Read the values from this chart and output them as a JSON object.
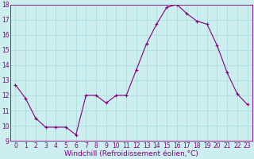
{
  "x": [
    0,
    1,
    2,
    3,
    4,
    5,
    6,
    7,
    8,
    9,
    10,
    11,
    12,
    13,
    14,
    15,
    16,
    17,
    18,
    19,
    20,
    21,
    22,
    23
  ],
  "y": [
    12.7,
    11.8,
    10.5,
    9.9,
    9.9,
    9.9,
    9.4,
    12.0,
    12.0,
    11.5,
    12.0,
    12.0,
    13.7,
    15.4,
    16.7,
    17.8,
    18.0,
    17.4,
    16.9,
    16.7,
    15.3,
    13.5,
    12.1,
    11.4
  ],
  "line_color": "#800080",
  "marker": "+",
  "marker_size": 3,
  "marker_lw": 0.8,
  "bg_color": "#cceeee",
  "grid_color": "#aadddd",
  "xlabel": "Windchill (Refroidissement éolien,°C)",
  "ylim": [
    9,
    18
  ],
  "xlim": [
    -0.5,
    23.5
  ],
  "yticks": [
    9,
    10,
    11,
    12,
    13,
    14,
    15,
    16,
    17,
    18
  ],
  "xticks": [
    0,
    1,
    2,
    3,
    4,
    5,
    6,
    7,
    8,
    9,
    10,
    11,
    12,
    13,
    14,
    15,
    16,
    17,
    18,
    19,
    20,
    21,
    22,
    23
  ],
  "tick_label_fontsize": 5.5,
  "xlabel_fontsize": 6.5,
  "label_color": "#800080",
  "spine_color": "#800080",
  "linewidth": 0.8
}
